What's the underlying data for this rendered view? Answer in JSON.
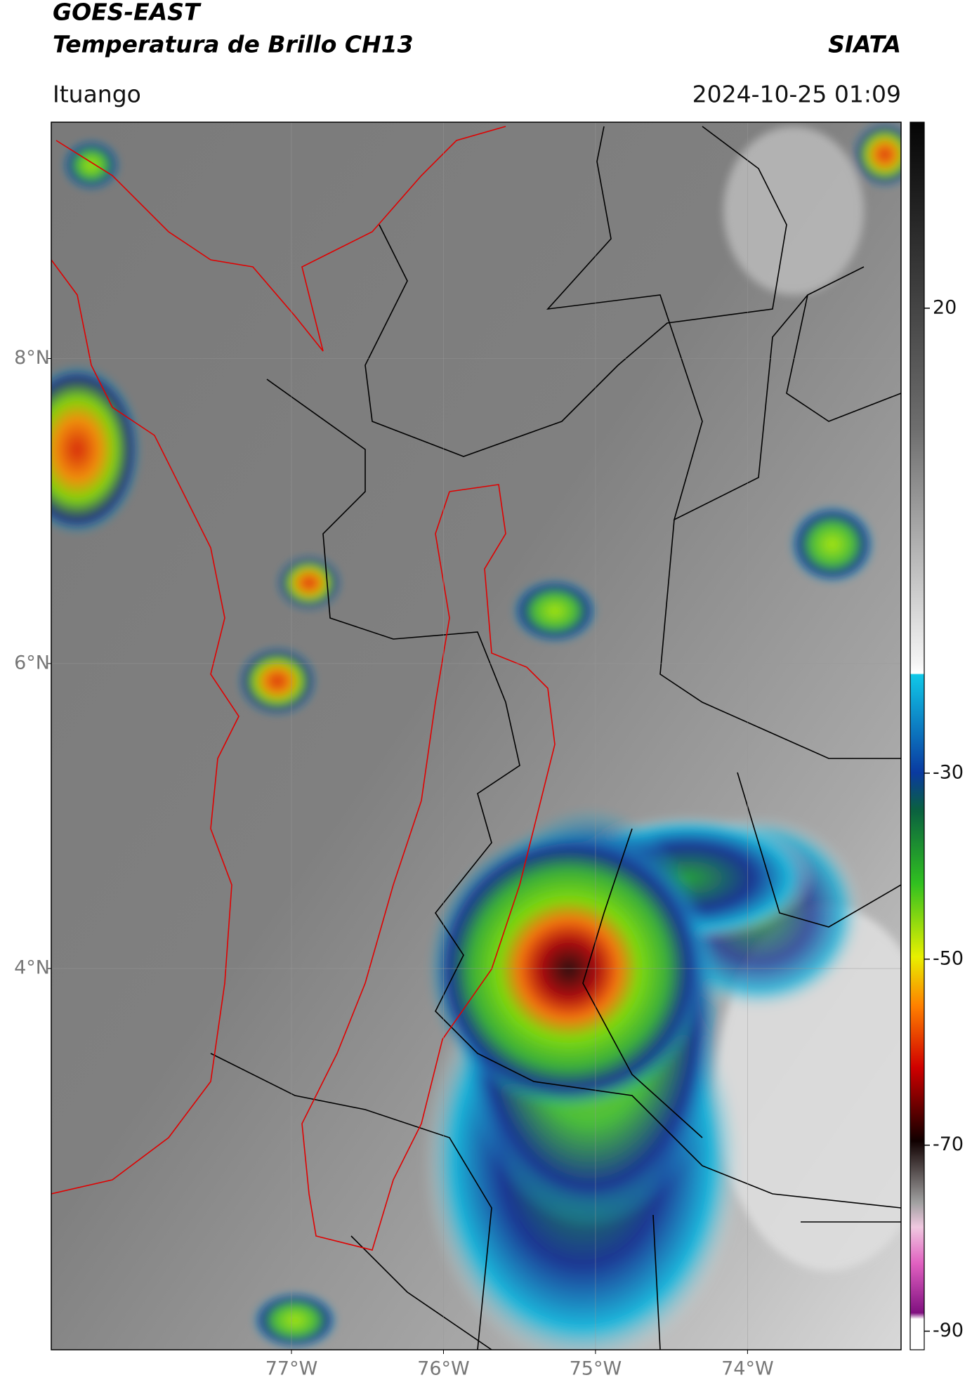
{
  "header": {
    "title": "GOES-EAST",
    "subtitle": "Temperatura de Brillo CH13",
    "source": "SIATA",
    "location": "Ituango",
    "timestamp": "2024-10-25 01:09"
  },
  "map": {
    "xlim": [
      -78.58,
      -72.99
    ],
    "ylim": [
      1.5,
      9.55
    ],
    "xticks": [
      {
        "value": -77,
        "label": "77°W"
      },
      {
        "value": -76,
        "label": "76°W"
      },
      {
        "value": -75,
        "label": "75°W"
      },
      {
        "value": -74,
        "label": "74°W"
      }
    ],
    "yticks": [
      {
        "value": 8,
        "label": "8°N"
      },
      {
        "value": 6,
        "label": "6°N"
      },
      {
        "value": 4,
        "label": "4°N"
      }
    ],
    "colorbar": {
      "clim": [
        -92,
        40
      ],
      "ticks": [
        20,
        -30,
        -50,
        -70,
        -90
      ]
    }
  }
}
